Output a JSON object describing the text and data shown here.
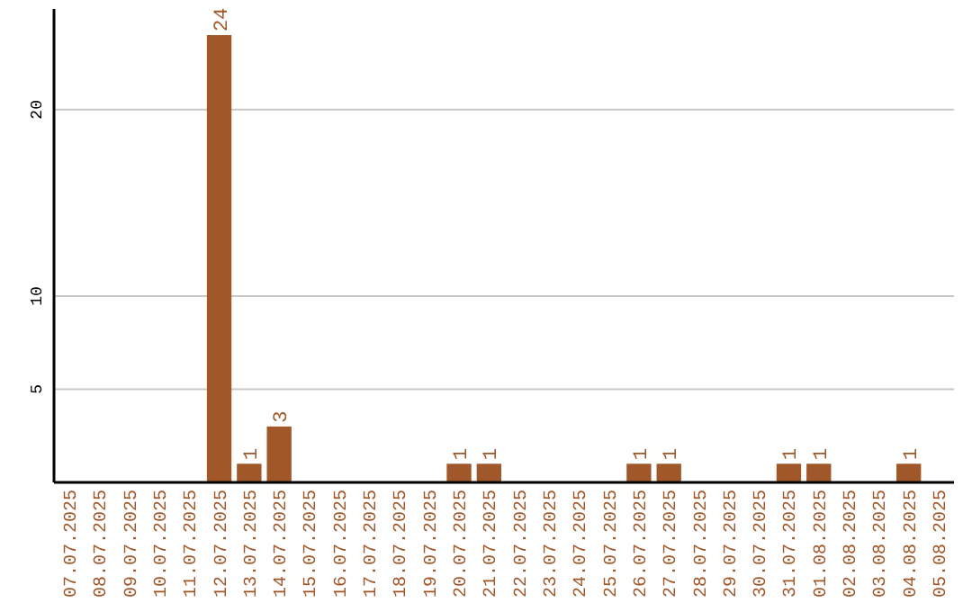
{
  "chart_data": {
    "type": "bar",
    "categories": [
      "07.07.2025",
      "08.07.2025",
      "09.07.2025",
      "10.07.2025",
      "11.07.2025",
      "12.07.2025",
      "13.07.2025",
      "14.07.2025",
      "15.07.2025",
      "16.07.2025",
      "17.07.2025",
      "18.07.2025",
      "19.07.2025",
      "20.07.2025",
      "21.07.2025",
      "22.07.2025",
      "23.07.2025",
      "24.07.2025",
      "25.07.2025",
      "26.07.2025",
      "27.07.2025",
      "28.07.2025",
      "29.07.2025",
      "30.07.2025",
      "31.07.2025",
      "01.08.2025",
      "02.08.2025",
      "03.08.2025",
      "04.08.2025",
      "05.08.2025"
    ],
    "values": [
      0,
      0,
      0,
      0,
      0,
      24,
      1,
      3,
      0,
      0,
      0,
      0,
      0,
      1,
      1,
      0,
      0,
      0,
      0,
      1,
      1,
      0,
      0,
      0,
      1,
      1,
      0,
      0,
      1,
      0
    ],
    "value_labels": [
      null,
      null,
      null,
      null,
      null,
      "24",
      "1",
      "3",
      null,
      null,
      null,
      null,
      null,
      "1",
      "1",
      null,
      null,
      null,
      null,
      "1",
      "1",
      null,
      null,
      null,
      "1",
      "1",
      null,
      null,
      "1",
      null
    ],
    "color": "#a0582a",
    "ylim": [
      0,
      25.4
    ],
    "yticks": [
      5,
      10,
      20
    ],
    "grid": "y"
  }
}
